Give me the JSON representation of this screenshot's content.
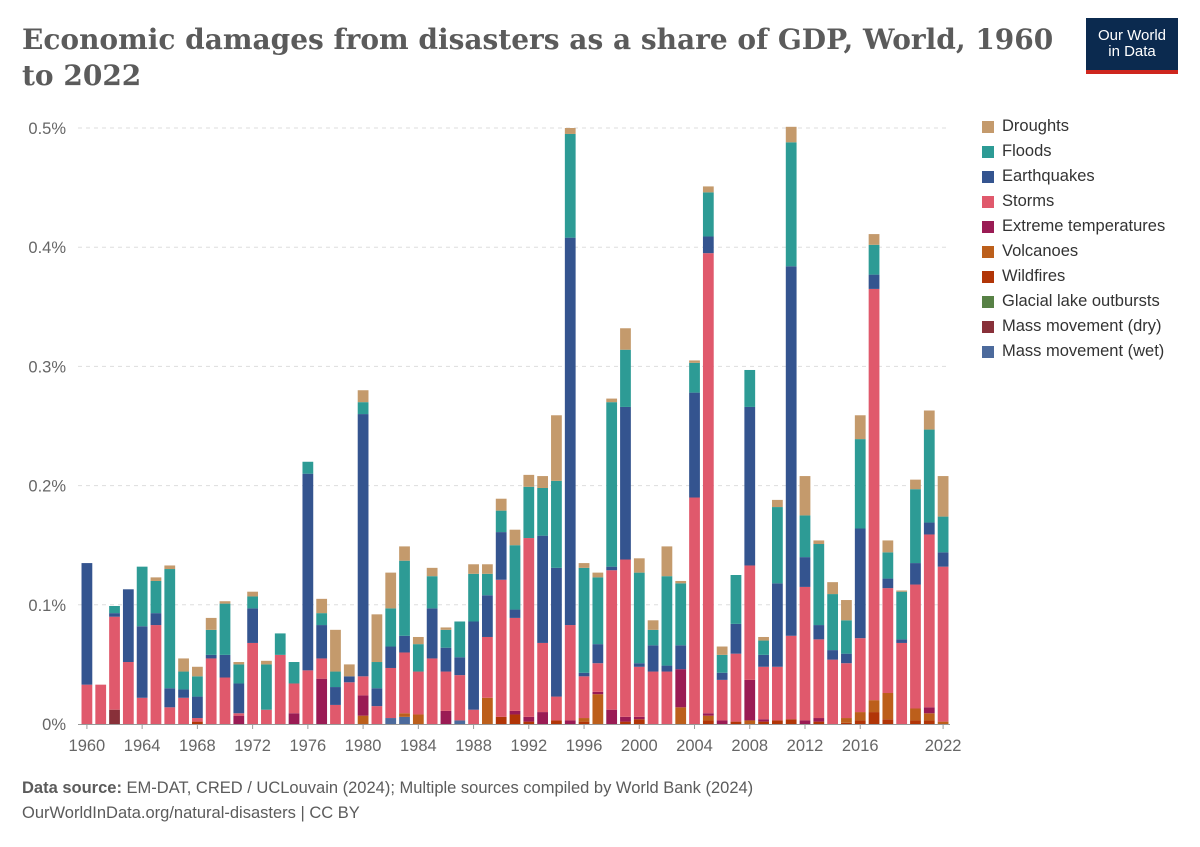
{
  "title": "Economic damages from disasters as a share of GDP, World, 1960 to 2022",
  "logo": {
    "line1": "Our World",
    "line2": "in Data",
    "bg": "#0b2a4f",
    "accent": "#ce261e"
  },
  "footer": {
    "source_label": "Data source:",
    "source_text": "EM-DAT, CRED / UCLouvain (2024); Multiple sources compiled by World Bank (2024)",
    "link_text": "OurWorldInData.org/natural-disasters | CC BY"
  },
  "chart_data": {
    "type": "bar",
    "stacked": true,
    "ylim": [
      0,
      0.5
    ],
    "y_ticks": [
      0,
      0.1,
      0.2,
      0.3,
      0.4,
      0.5
    ],
    "y_tick_labels": [
      "0%",
      "0.1%",
      "0.2%",
      "0.3%",
      "0.4%",
      "0.5%"
    ],
    "x_tick_labels": [
      "1960",
      "1964",
      "1968",
      "1972",
      "1976",
      "1980",
      "1984",
      "1988",
      "1992",
      "1996",
      "2000",
      "2004",
      "2008",
      "2012",
      "2016",
      "2022"
    ],
    "grid": true,
    "legend_position": "right",
    "categories": [
      1960,
      1961,
      1962,
      1963,
      1964,
      1965,
      1966,
      1967,
      1968,
      1969,
      1970,
      1971,
      1972,
      1973,
      1974,
      1975,
      1976,
      1977,
      1978,
      1979,
      1980,
      1981,
      1982,
      1983,
      1984,
      1985,
      1986,
      1987,
      1988,
      1989,
      1990,
      1991,
      1992,
      1993,
      1994,
      1995,
      1996,
      1997,
      1998,
      1999,
      2000,
      2001,
      2002,
      2003,
      2004,
      2005,
      2006,
      2007,
      2008,
      2009,
      2010,
      2011,
      2012,
      2013,
      2014,
      2015,
      2016,
      2017,
      2018,
      2019,
      2020,
      2021,
      2022
    ],
    "series": [
      {
        "name": "Mass movement (wet)",
        "color": "#4c6a9c",
        "values": [
          0,
          0,
          0,
          0,
          0,
          0,
          0,
          0,
          0,
          0,
          0,
          0,
          0,
          0,
          0,
          0,
          0,
          0,
          0,
          0,
          0,
          0,
          0.005,
          0.006,
          0,
          0,
          0,
          0.003,
          0,
          0,
          0,
          0,
          0,
          0,
          0,
          0,
          0,
          0,
          0,
          0,
          0,
          0,
          0,
          0,
          0,
          0,
          0,
          0,
          0,
          0,
          0,
          0,
          0,
          0,
          0,
          0,
          0,
          0,
          0,
          0,
          0,
          0,
          0
        ]
      },
      {
        "name": "Mass movement (dry)",
        "color": "#883039",
        "values": [
          0,
          0,
          0.012,
          0,
          0,
          0,
          0,
          0,
          0,
          0,
          0,
          0,
          0,
          0,
          0,
          0,
          0,
          0,
          0,
          0,
          0,
          0,
          0,
          0,
          0,
          0,
          0,
          0,
          0,
          0,
          0,
          0,
          0,
          0,
          0,
          0,
          0,
          0,
          0,
          0,
          0,
          0,
          0,
          0,
          0,
          0,
          0,
          0,
          0,
          0,
          0,
          0,
          0,
          0,
          0,
          0,
          0,
          0,
          0,
          0,
          0,
          0,
          0
        ]
      },
      {
        "name": "Glacial lake outbursts",
        "color": "#578145",
        "values": [
          0,
          0,
          0,
          0,
          0,
          0,
          0,
          0,
          0,
          0,
          0,
          0,
          0,
          0,
          0,
          0,
          0,
          0,
          0,
          0,
          0,
          0,
          0,
          0,
          0,
          0,
          0,
          0,
          0,
          0,
          0,
          0,
          0,
          0,
          0,
          0,
          0,
          0,
          0,
          0,
          0,
          0,
          0,
          0,
          0,
          0,
          0,
          0,
          0,
          0,
          0,
          0,
          0,
          0,
          0,
          0,
          0,
          0,
          0,
          0,
          0,
          0,
          0
        ]
      },
      {
        "name": "Wildfires",
        "color": "#b13507",
        "values": [
          0,
          0,
          0,
          0,
          0,
          0,
          0,
          0,
          0.002,
          0,
          0,
          0,
          0,
          0,
          0,
          0,
          0,
          0,
          0,
          0,
          0,
          0,
          0,
          0,
          0,
          0,
          0,
          0,
          0,
          0,
          0.006,
          0.008,
          0.002,
          0,
          0.003,
          0,
          0.002,
          0,
          0,
          0.002,
          0.004,
          0,
          0,
          0,
          0,
          0.003,
          0,
          0.002,
          0,
          0.002,
          0.003,
          0.004,
          0,
          0.002,
          0,
          0.001,
          0.003,
          0.01,
          0.004,
          0,
          0.003,
          0.003,
          0
        ]
      },
      {
        "name": "Volcanoes",
        "color": "#bc5f1b",
        "values": [
          0,
          0,
          0,
          0,
          0,
          0,
          0,
          0,
          0,
          0,
          0,
          0,
          0,
          0,
          0,
          0,
          0,
          0,
          0,
          0,
          0.007,
          0,
          0,
          0.003,
          0.008,
          0,
          0,
          0,
          0,
          0.022,
          0,
          0,
          0,
          0,
          0,
          0,
          0.003,
          0.025,
          0,
          0,
          0,
          0,
          0,
          0.014,
          0,
          0.004,
          0,
          0,
          0.003,
          0,
          0,
          0,
          0,
          0,
          0,
          0.004,
          0.007,
          0.01,
          0.022,
          0,
          0.01,
          0.006,
          0.002
        ]
      },
      {
        "name": "Extreme temperatures",
        "color": "#9a1b54",
        "values": [
          0,
          0,
          0,
          0,
          0,
          0,
          0,
          0,
          0,
          0,
          0,
          0.007,
          0,
          0,
          0,
          0.009,
          0,
          0.038,
          0,
          0,
          0.017,
          0,
          0,
          0,
          0,
          0,
          0.011,
          0,
          0,
          0,
          0,
          0.003,
          0.004,
          0.01,
          0,
          0.003,
          0,
          0.002,
          0.012,
          0.004,
          0.002,
          0,
          0,
          0.032,
          0,
          0.002,
          0.003,
          0,
          0.034,
          0.002,
          0,
          0,
          0.003,
          0.003,
          0,
          0,
          0,
          0,
          0,
          0,
          0,
          0.005,
          0
        ]
      },
      {
        "name": "Storms",
        "color": "#e0596c",
        "values": [
          0.033,
          0.033,
          0.078,
          0.052,
          0.022,
          0.083,
          0.014,
          0.022,
          0.003,
          0.055,
          0.039,
          0.002,
          0.068,
          0.012,
          0.058,
          0.025,
          0.045,
          0.017,
          0.016,
          0.035,
          0.016,
          0.015,
          0.042,
          0.051,
          0.036,
          0.055,
          0.033,
          0.038,
          0.012,
          0.051,
          0.115,
          0.078,
          0.15,
          0.058,
          0.02,
          0.08,
          0.035,
          0.024,
          0.117,
          0.132,
          0.042,
          0.044,
          0.044,
          0.0,
          0.19,
          0.386,
          0.034,
          0.057,
          0.096,
          0.044,
          0.045,
          0.07,
          0.112,
          0.066,
          0.054,
          0.046,
          0.062,
          0.345,
          0.088,
          0.068,
          0.104,
          0.145,
          0.13
        ]
      },
      {
        "name": "Earthquakes",
        "color": "#34548f",
        "values": [
          0.102,
          0,
          0.003,
          0.061,
          0.06,
          0.01,
          0.016,
          0.007,
          0.018,
          0.003,
          0.019,
          0.025,
          0.029,
          0,
          0,
          0,
          0.165,
          0.028,
          0.015,
          0.005,
          0.22,
          0.015,
          0.018,
          0.014,
          0,
          0.042,
          0.02,
          0.015,
          0.074,
          0.035,
          0.04,
          0.007,
          0,
          0.09,
          0.108,
          0.325,
          0.003,
          0.016,
          0.003,
          0.128,
          0.003,
          0.022,
          0.005,
          0.02,
          0.088,
          0.014,
          0.006,
          0.025,
          0.133,
          0.01,
          0.07,
          0.31,
          0.025,
          0.012,
          0.008,
          0.008,
          0.092,
          0.012,
          0.008,
          0.003,
          0.018,
          0.01,
          0.012
        ]
      },
      {
        "name": "Floods",
        "color": "#2d9b95",
        "values": [
          0,
          0,
          0.006,
          0,
          0.05,
          0.027,
          0.1,
          0.015,
          0.017,
          0.021,
          0.043,
          0.016,
          0.01,
          0.038,
          0.018,
          0.018,
          0.01,
          0.01,
          0.013,
          0,
          0.01,
          0.022,
          0.032,
          0.063,
          0.023,
          0.027,
          0.015,
          0.03,
          0.04,
          0.018,
          0.018,
          0.054,
          0.043,
          0.04,
          0.073,
          0.087,
          0.088,
          0.056,
          0.138,
          0.048,
          0.076,
          0.013,
          0.075,
          0.052,
          0.025,
          0.037,
          0.015,
          0.041,
          0.031,
          0.012,
          0.064,
          0.104,
          0.035,
          0.068,
          0.047,
          0.028,
          0.075,
          0.025,
          0.022,
          0.04,
          0.062,
          0.078,
          0.03
        ]
      },
      {
        "name": "Droughts",
        "color": "#c49a6c",
        "values": [
          0,
          0,
          0,
          0,
          0,
          0.003,
          0.003,
          0.011,
          0.008,
          0.01,
          0.002,
          0.002,
          0.004,
          0.003,
          0,
          0,
          0,
          0.012,
          0.035,
          0.01,
          0.01,
          0.04,
          0.03,
          0.012,
          0.006,
          0.007,
          0.002,
          0,
          0.008,
          0.008,
          0.01,
          0.013,
          0.01,
          0.01,
          0.055,
          0.005,
          0.004,
          0.004,
          0.003,
          0.018,
          0.012,
          0.008,
          0.025,
          0.002,
          0.002,
          0.005,
          0.007,
          0,
          0,
          0.003,
          0.006,
          0.013,
          0.033,
          0.003,
          0.01,
          0.017,
          0.02,
          0.009,
          0.01,
          0.001,
          0.008,
          0.016,
          0.034
        ]
      }
    ]
  }
}
